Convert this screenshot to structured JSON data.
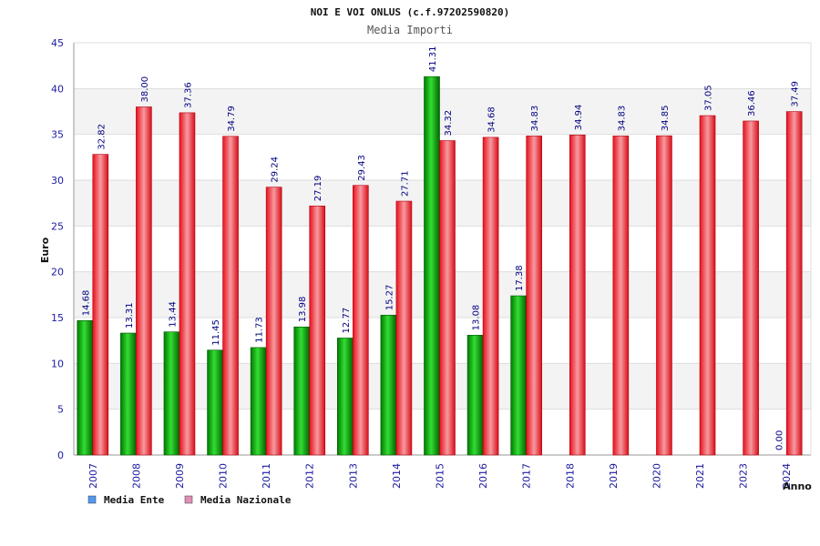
{
  "chart_data": {
    "type": "bar",
    "title": "NOI E VOI ONLUS (c.f.97202590820)",
    "subtitle": "Media Importi",
    "xlabel": "Anno",
    "ylabel": "Euro",
    "ylim": [
      0,
      45
    ],
    "yticks": [
      0,
      5,
      10,
      15,
      20,
      25,
      30,
      35,
      40,
      45
    ],
    "categories": [
      "2007",
      "2008",
      "2009",
      "2010",
      "2011",
      "2012",
      "2013",
      "2014",
      "2015",
      "2016",
      "2017",
      "2018",
      "2019",
      "2020",
      "2021",
      "2023",
      "2024"
    ],
    "series": [
      {
        "name": "Media Ente",
        "color": "#00a000",
        "legend_color": "#5599ee",
        "values": [
          14.68,
          13.31,
          13.44,
          11.45,
          11.73,
          13.98,
          12.77,
          15.27,
          41.31,
          13.08,
          17.38,
          null,
          null,
          null,
          null,
          null,
          0.0
        ],
        "labels": [
          "14.68",
          "13.31",
          "13.44",
          "11.45",
          "11.73",
          "13.98",
          "12.77",
          "15.27",
          "41.31",
          "13.08",
          "17.38",
          null,
          null,
          null,
          null,
          null,
          "0.00"
        ]
      },
      {
        "name": "Media Nazionale",
        "color": "#e8202a",
        "legend_color": "#e090b0",
        "values": [
          32.82,
          38.0,
          37.36,
          34.79,
          29.24,
          27.19,
          29.43,
          27.71,
          34.32,
          34.68,
          34.83,
          34.94,
          34.83,
          34.85,
          37.05,
          36.46,
          37.49
        ],
        "labels": [
          "32.82",
          "38.00",
          "37.36",
          "34.79",
          "29.24",
          "27.19",
          "29.43",
          "27.71",
          "34.32",
          "34.68",
          "34.83",
          "34.94",
          "34.83",
          "34.85",
          "37.05",
          "36.46",
          "37.49"
        ]
      }
    ],
    "grid": true,
    "legend": "bottom-left"
  }
}
